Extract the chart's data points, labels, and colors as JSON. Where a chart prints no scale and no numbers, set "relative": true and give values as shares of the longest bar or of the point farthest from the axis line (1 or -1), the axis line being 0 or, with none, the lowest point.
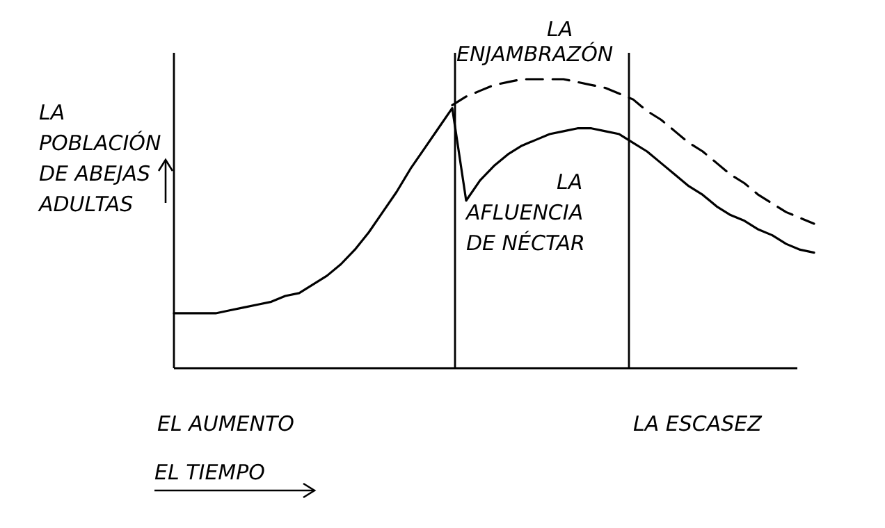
{
  "chart_data": {
    "type": "line",
    "relative": true,
    "categories": [
      null,
      null,
      null,
      null,
      null,
      null,
      null,
      null,
      null,
      null,
      null,
      null,
      null,
      null,
      null,
      null,
      null,
      null,
      null,
      null,
      null,
      null,
      null,
      null,
      null,
      null,
      null,
      null,
      null,
      null,
      null,
      null,
      null,
      null,
      null,
      null,
      null,
      null,
      null,
      null,
      null,
      null,
      null,
      null,
      null,
      null,
      null
    ],
    "ylabel": "LA\nPOBLACIÓN\nDE ABEJAS\nADULTAS",
    "xlabel": "EL TIEMPO",
    "series": [
      {
        "color": "#000000",
        "line_style": "solid",
        "values": [
          0.19,
          0.19,
          0.19,
          0.19,
          0.2,
          0.21,
          0.22,
          0.23,
          0.25,
          0.26,
          0.29,
          0.32,
          0.36,
          0.41,
          0.47,
          0.54,
          0.61,
          0.69,
          0.76,
          0.83,
          0.9,
          0.58,
          0.65,
          0.7,
          0.74,
          0.77,
          0.79,
          0.81,
          0.82,
          0.83,
          0.83,
          0.82,
          0.81,
          0.78,
          0.75,
          0.71,
          0.67,
          0.63,
          0.6,
          0.56,
          0.53,
          0.51,
          0.48,
          0.46,
          0.43,
          0.41,
          0.4
        ]
      },
      {
        "color": "#000000",
        "line_style": "dashed",
        "values": [
          null,
          null,
          null,
          null,
          null,
          null,
          null,
          null,
          null,
          null,
          null,
          null,
          null,
          null,
          null,
          null,
          null,
          null,
          null,
          null,
          0.91,
          0.94,
          0.96,
          0.98,
          0.99,
          1.0,
          1.0,
          1.0,
          1.0,
          0.99,
          0.98,
          0.97,
          0.95,
          0.93,
          0.89,
          0.86,
          0.82,
          0.78,
          0.75,
          0.71,
          0.67,
          0.64,
          0.6,
          0.57,
          0.54,
          0.52,
          0.5
        ]
      }
    ],
    "annotations": [
      "LA\nENJAMBRAZÓN",
      "LA\nAFLUENCIA\nDE NÉCTAR",
      "EL AUMENTO",
      "LA ESCASEZ"
    ]
  }
}
